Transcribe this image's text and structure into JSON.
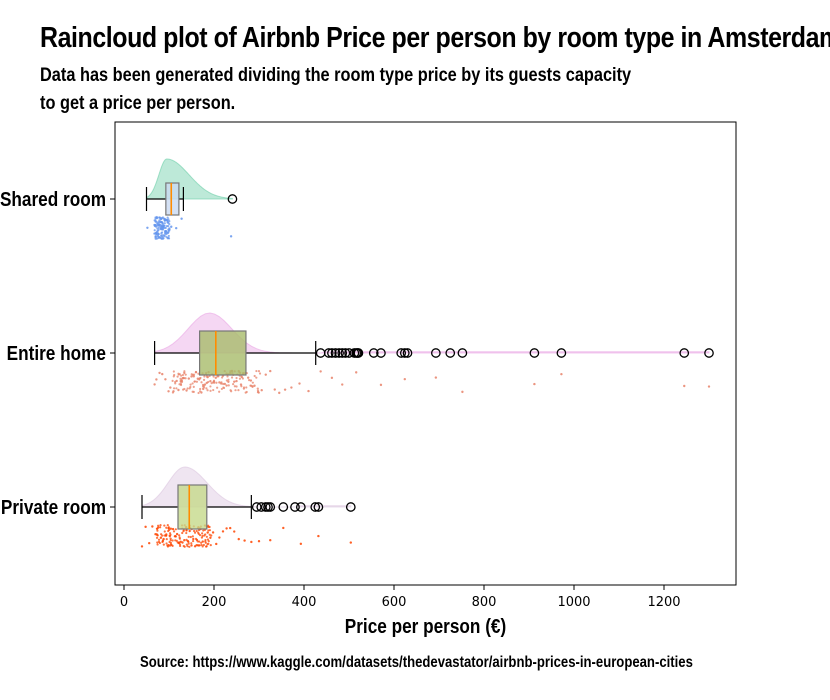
{
  "header": {
    "title": "Raincloud plot of Airbnb Price per person by room type in Amsterdam",
    "subtitle_line1": "Data has been generated dividing the room type price by its guests capacity",
    "subtitle_line2": "to get a price per person."
  },
  "footer": {
    "source": "Source: https://www.kaggle.com/datasets/thedevastator/airbnb-prices-in-european-cities"
  },
  "chart_data": {
    "type": "raincloud",
    "title": "Raincloud plot of Airbnb Price per person by room type in Amsterdam",
    "xlabel": "Price per person (€)",
    "ylabel": "",
    "xlim": [
      -20,
      1360
    ],
    "xticks": [
      0,
      200,
      400,
      600,
      800,
      1000,
      1200
    ],
    "grid": false,
    "categories": [
      "Shared room",
      "Entire home",
      "Private room"
    ],
    "groups": [
      {
        "name": "Shared room",
        "color": "#6dcfa8",
        "box_color": "#c9d9f2",
        "median_color": "#ff8c00",
        "whisker_low": 50,
        "q1": 93,
        "median": 105,
        "q3": 122,
        "whisker_high": 132,
        "outliers": [
          241
        ],
        "density_range": [
          50,
          241
        ],
        "density_peak": 95,
        "rain_points": [
          52,
          85,
          92,
          97,
          105,
          116,
          128,
          238
        ],
        "rain_color": "#6495ed"
      },
      {
        "name": "Entire home",
        "color": "#e9a6e4",
        "box_color": "#a8bb6a",
        "median_color": "#ff8c00",
        "whisker_low": 68,
        "q1": 168,
        "median": 204,
        "q3": 271,
        "whisker_high": 426,
        "outliers": [
          437,
          455,
          462,
          470,
          478,
          485,
          492,
          500,
          512,
          516,
          519,
          521,
          555,
          571,
          616,
          624,
          630,
          693,
          725,
          752,
          912,
          972,
          1245,
          1300
        ],
        "density_range": [
          68,
          1300
        ],
        "density_peak": 190,
        "rain_points": [
          68,
          72,
          79,
          85,
          92,
          99,
          103,
          110,
          117,
          121,
          128,
          134,
          139,
          144,
          150,
          155,
          160,
          164,
          168,
          172,
          176,
          180,
          184,
          188,
          192,
          196,
          200,
          204,
          208,
          212,
          216,
          220,
          224,
          228,
          232,
          236,
          240,
          245,
          250,
          255,
          260,
          265,
          270,
          276,
          282,
          290,
          298,
          306,
          315,
          325,
          335,
          345,
          358,
          372,
          390,
          410,
          437,
          462,
          485,
          516,
          571,
          624,
          693,
          752,
          912,
          972,
          1245,
          1300
        ],
        "rain_color": "#e8836a"
      },
      {
        "name": "Private room",
        "color": "#dcc6e0",
        "box_color": "#c5d98b",
        "median_color": "#ff8c00",
        "whisker_low": 40,
        "q1": 120,
        "median": 145,
        "q3": 184,
        "whisker_high": 283,
        "outliers": [
          295,
          305,
          315,
          320,
          325,
          354,
          380,
          393,
          425,
          432,
          504
        ],
        "density_range": [
          40,
          504
        ],
        "density_peak": 135,
        "rain_points": [
          40,
          48,
          56,
          63,
          70,
          76,
          82,
          88,
          94,
          99,
          104,
          109,
          114,
          118,
          122,
          126,
          130,
          134,
          138,
          142,
          146,
          150,
          154,
          158,
          162,
          166,
          170,
          175,
          180,
          186,
          192,
          198,
          205,
          212,
          220,
          228,
          236,
          245,
          255,
          268,
          283,
          300,
          325,
          354,
          393,
          432,
          504
        ],
        "rain_color": "#ff4500"
      }
    ]
  }
}
